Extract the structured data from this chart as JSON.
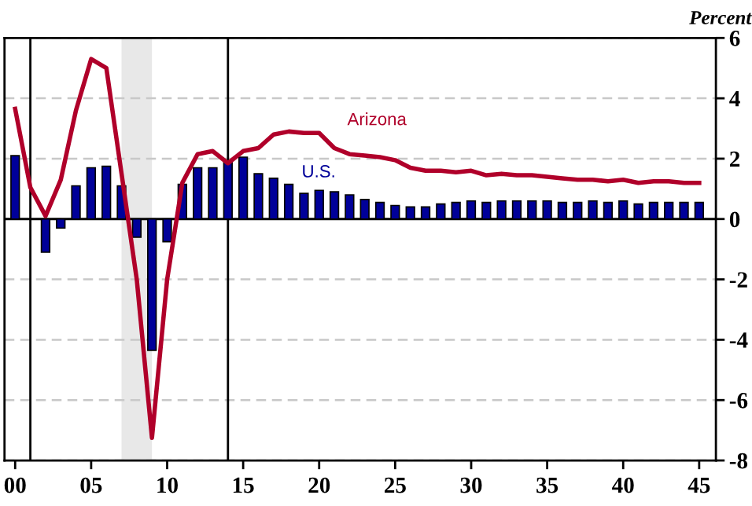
{
  "chart_data": {
    "type": "bar",
    "ylabel": "Percent",
    "x": [
      2000,
      2001,
      2002,
      2003,
      2004,
      2005,
      2006,
      2007,
      2008,
      2009,
      2010,
      2011,
      2012,
      2013,
      2014,
      2015,
      2016,
      2017,
      2018,
      2019,
      2020,
      2021,
      2022,
      2023,
      2024,
      2025,
      2026,
      2027,
      2028,
      2029,
      2030,
      2031,
      2032,
      2033,
      2034,
      2035,
      2036,
      2037,
      2038,
      2039,
      2040,
      2041,
      2042,
      2043,
      2044,
      2045
    ],
    "series": [
      {
        "name": "U.S.",
        "color": "#000099",
        "values": [
          2.1,
          null,
          -1.1,
          -0.3,
          1.1,
          1.7,
          1.75,
          1.1,
          -0.6,
          -4.35,
          -0.75,
          1.15,
          1.7,
          1.7,
          1.9,
          2.05,
          1.5,
          1.35,
          1.15,
          0.85,
          0.95,
          0.9,
          0.8,
          0.65,
          0.55,
          0.45,
          0.4,
          0.4,
          0.5,
          0.55,
          0.6,
          0.55,
          0.6,
          0.6,
          0.6,
          0.6,
          0.55,
          0.55,
          0.6,
          0.55,
          0.6,
          0.5,
          0.55,
          0.55,
          0.55,
          0.55
        ]
      },
      {
        "name": "Arizona",
        "type": "line",
        "color": "#b0002a",
        "values": [
          3.65,
          1.05,
          0.1,
          1.3,
          3.6,
          5.3,
          5.0,
          1.5,
          -2.0,
          -7.25,
          -2.0,
          1.2,
          2.15,
          2.25,
          1.85,
          2.25,
          2.35,
          2.8,
          2.9,
          2.85,
          2.85,
          2.35,
          2.15,
          2.1,
          2.05,
          1.95,
          1.7,
          1.6,
          1.6,
          1.55,
          1.6,
          1.45,
          1.5,
          1.45,
          1.45,
          1.4,
          1.35,
          1.3,
          1.3,
          1.25,
          1.3,
          1.2,
          1.25,
          1.25,
          1.2,
          1.2
        ]
      }
    ],
    "xlim": [
      1999.3,
      2046.1
    ],
    "xticks": [
      {
        "value": 2000,
        "label": "00"
      },
      {
        "value": 2005,
        "label": "05"
      },
      {
        "value": 2010,
        "label": "10"
      },
      {
        "value": 2015,
        "label": "15"
      },
      {
        "value": 2020,
        "label": "20"
      },
      {
        "value": 2025,
        "label": "25"
      },
      {
        "value": 2030,
        "label": "30"
      },
      {
        "value": 2035,
        "label": "35"
      },
      {
        "value": 2040,
        "label": "40"
      },
      {
        "value": 2045,
        "label": "45"
      }
    ],
    "ylim": [
      -8,
      6
    ],
    "yticks": [
      -8,
      -6,
      -4,
      -2,
      0,
      2,
      4,
      6
    ],
    "grid": "y",
    "ref_lines": [
      {
        "axis": "y",
        "value": 0,
        "color": "#000000"
      },
      {
        "axis": "x",
        "value": 2001,
        "color": "#000000"
      },
      {
        "axis": "x",
        "value": 2014,
        "color": "#000000"
      }
    ],
    "bands": [
      {
        "axis": "x",
        "from": 2007,
        "to": 2009,
        "color": "#e8e8e8"
      }
    ]
  }
}
